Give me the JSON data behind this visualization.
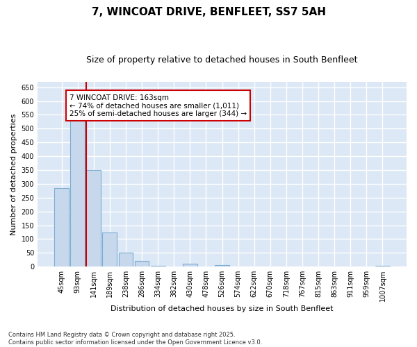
{
  "title1": "7, WINCOAT DRIVE, BENFLEET, SS7 5AH",
  "title2": "Size of property relative to detached houses in South Benfleet",
  "xlabel": "Distribution of detached houses by size in South Benfleet",
  "ylabel": "Number of detached properties",
  "categories": [
    "45sqm",
    "93sqm",
    "141sqm",
    "189sqm",
    "238sqm",
    "286sqm",
    "334sqm",
    "382sqm",
    "430sqm",
    "478sqm",
    "526sqm",
    "574sqm",
    "622sqm",
    "670sqm",
    "718sqm",
    "767sqm",
    "815sqm",
    "863sqm",
    "911sqm",
    "959sqm",
    "1007sqm"
  ],
  "values": [
    285,
    530,
    350,
    125,
    50,
    20,
    2,
    1,
    10,
    1,
    5,
    1,
    1,
    1,
    1,
    1,
    1,
    1,
    1,
    1,
    3
  ],
  "bar_color": "#c8d8ec",
  "bar_edge_color": "#7aadd4",
  "red_line_index": 2,
  "annotation_text": "7 WINCOAT DRIVE: 163sqm\n← 74% of detached houses are smaller (1,011)\n25% of semi-detached houses are larger (344) →",
  "annotation_box_color": "#ffffff",
  "annotation_border_color": "#cc0000",
  "ylim": [
    0,
    670
  ],
  "yticks": [
    0,
    50,
    100,
    150,
    200,
    250,
    300,
    350,
    400,
    450,
    500,
    550,
    600,
    650
  ],
  "footer": "Contains HM Land Registry data © Crown copyright and database right 2025.\nContains public sector information licensed under the Open Government Licence v3.0.",
  "fig_bg_color": "#ffffff",
  "plot_bg_color": "#dce8f5",
  "grid_color": "#ffffff",
  "title1_fontsize": 11,
  "title2_fontsize": 9
}
